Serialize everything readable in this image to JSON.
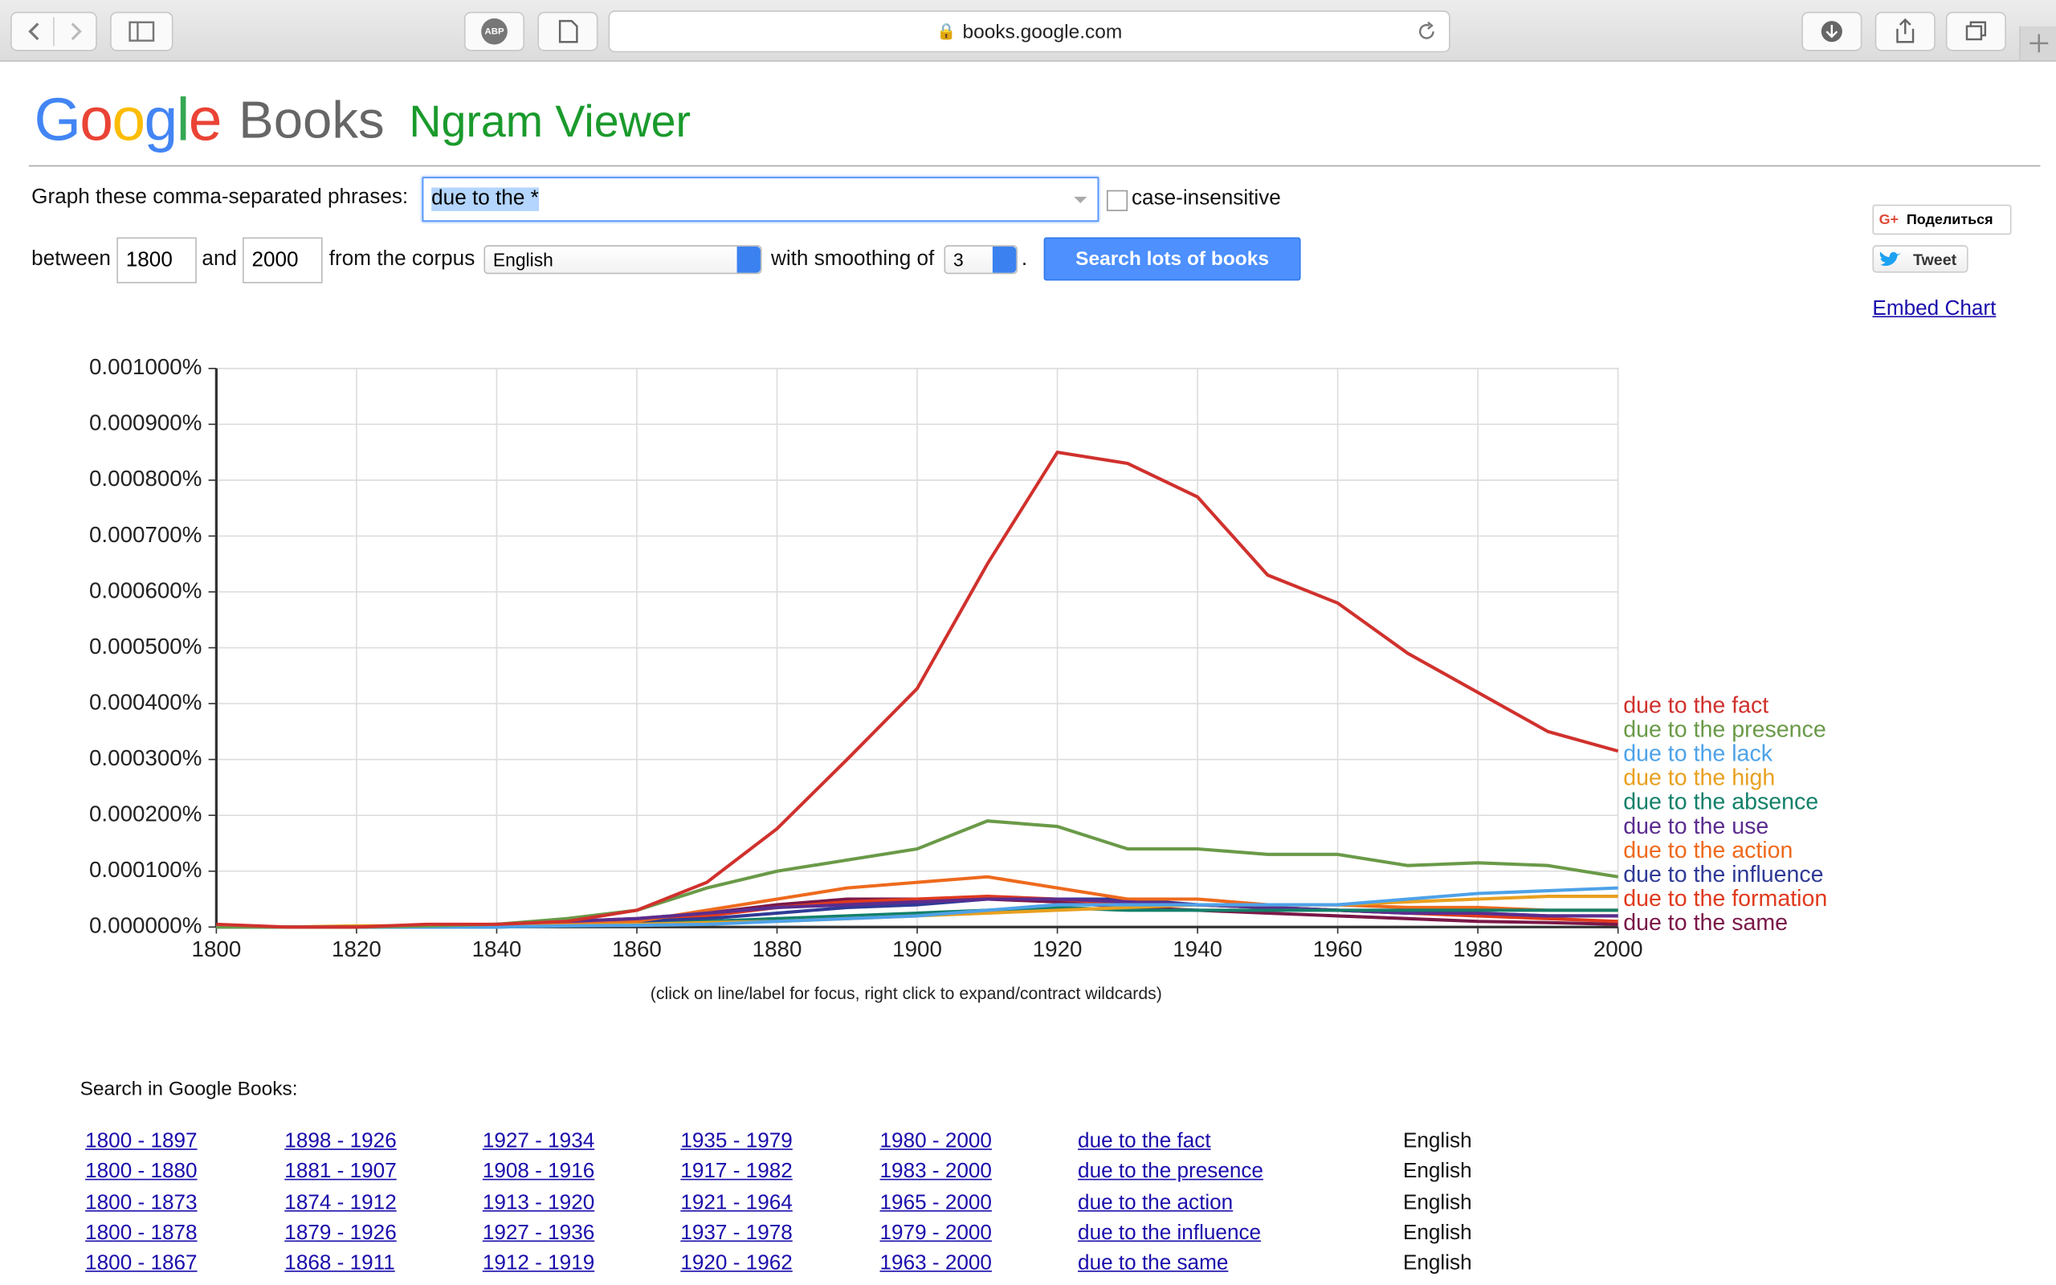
{
  "browser": {
    "url": "books.google.com",
    "adblock": "ABP"
  },
  "header": {
    "logo": "Google",
    "logo_books": "Books",
    "title": "Ngram Viewer"
  },
  "form": {
    "phrases_label": "Graph these comma-separated phrases:",
    "phrases": "due to the *",
    "case_insensitive": "case-insensitive",
    "between": "between",
    "year_start": "1800",
    "and": "and",
    "year_end": "2000",
    "corpus_label": "from the corpus",
    "corpus": "English",
    "smoothing_label": "with smoothing of",
    "smoothing": "3",
    "period": ".",
    "search_button": "Search lots of books"
  },
  "share": {
    "google_plus_icon": "G+",
    "google_plus": "Поделиться",
    "tweet": "Tweet",
    "embed": "Embed Chart"
  },
  "chart_data": {
    "type": "line",
    "caption": "(click on line/label for focus, right click to expand/contract wildcards)",
    "x": [
      1800,
      1810,
      1820,
      1830,
      1840,
      1850,
      1860,
      1870,
      1880,
      1890,
      1900,
      1910,
      1920,
      1930,
      1940,
      1950,
      1960,
      1970,
      1980,
      1990,
      2000
    ],
    "xlim": [
      1800,
      2000
    ],
    "xticks": [
      1800,
      1820,
      1840,
      1860,
      1880,
      1900,
      1920,
      1940,
      1960,
      1980,
      2000
    ],
    "ylim": [
      0,
      0.001
    ],
    "yticks": [
      {
        "value": 0,
        "label": "0.000000%"
      },
      {
        "value": 0.0001,
        "label": "0.000100%"
      },
      {
        "value": 0.0002,
        "label": "0.000200%"
      },
      {
        "value": 0.0003,
        "label": "0.000300%"
      },
      {
        "value": 0.0004,
        "label": "0.000400%"
      },
      {
        "value": 0.0005,
        "label": "0.000500%"
      },
      {
        "value": 0.0006,
        "label": "0.000600%"
      },
      {
        "value": 0.0007,
        "label": "0.000700%"
      },
      {
        "value": 0.0008,
        "label": "0.000800%"
      },
      {
        "value": 0.0009,
        "label": "0.000900%"
      },
      {
        "value": 0.001,
        "label": "0.001000%"
      }
    ],
    "grid": true,
    "series": [
      {
        "name": "due to the fact",
        "color": "#d0312d",
        "values": [
          5e-06,
          0,
          0,
          5e-06,
          5e-06,
          1e-05,
          3e-05,
          8e-05,
          0.000176,
          0.0003,
          0.000427,
          0.00065,
          0.00085,
          0.00083,
          0.00077,
          0.00063,
          0.00058,
          0.00049,
          0.00042,
          0.00035,
          0.000315
        ]
      },
      {
        "name": "due to the presence",
        "color": "#6a9a48",
        "values": [
          0,
          0,
          0,
          2e-06,
          5e-06,
          1.5e-05,
          3e-05,
          7e-05,
          0.0001,
          0.00012,
          0.00014,
          0.00019,
          0.00018,
          0.00014,
          0.00014,
          0.00013,
          0.00013,
          0.00011,
          0.000115,
          0.00011,
          9e-05
        ]
      },
      {
        "name": "due to the lack",
        "color": "#4ea2e8",
        "values": [
          0,
          0,
          0,
          0,
          0,
          2e-06,
          3e-06,
          5e-06,
          1e-05,
          1.5e-05,
          2e-05,
          3e-05,
          4e-05,
          4e-05,
          4e-05,
          4e-05,
          4e-05,
          5e-05,
          6e-05,
          6.5e-05,
          7e-05
        ]
      },
      {
        "name": "due to the high",
        "color": "#e8a020",
        "values": [
          2e-06,
          0,
          2e-06,
          2e-06,
          2e-06,
          3e-06,
          5e-06,
          8e-06,
          1e-05,
          1.5e-05,
          2e-05,
          2.5e-05,
          3e-05,
          3.5e-05,
          4e-05,
          4e-05,
          4e-05,
          4.5e-05,
          5e-05,
          5.5e-05,
          5.5e-05
        ]
      },
      {
        "name": "due to the absence",
        "color": "#13806a",
        "values": [
          0,
          0,
          0,
          0,
          0,
          2e-06,
          5e-06,
          1e-05,
          1.5e-05,
          2e-05,
          2.5e-05,
          3e-05,
          3.5e-05,
          3e-05,
          3e-05,
          3e-05,
          3e-05,
          3e-05,
          3e-05,
          3e-05,
          3e-05
        ]
      },
      {
        "name": "due to the use",
        "color": "#5b2d8f",
        "values": [
          0,
          0,
          0,
          2e-06,
          5e-06,
          1e-05,
          1.5e-05,
          2.5e-05,
          3.5e-05,
          4e-05,
          4.5e-05,
          5e-05,
          5e-05,
          4.5e-05,
          4e-05,
          3.5e-05,
          3e-05,
          2.5e-05,
          2.5e-05,
          2e-05,
          2e-05
        ]
      },
      {
        "name": "due to the action",
        "color": "#ee6a1d",
        "values": [
          0,
          0,
          0,
          0,
          2e-06,
          5e-06,
          1e-05,
          3e-05,
          5e-05,
          7e-05,
          8e-05,
          9e-05,
          7e-05,
          5e-05,
          5e-05,
          4e-05,
          4e-05,
          3.5e-05,
          3.5e-05,
          3e-05,
          3e-05
        ]
      },
      {
        "name": "due to the influence",
        "color": "#2f3b96",
        "values": [
          0,
          0,
          0,
          0,
          2e-06,
          5e-06,
          1e-05,
          1.5e-05,
          2.5e-05,
          3.5e-05,
          4e-05,
          5e-05,
          5e-05,
          5e-05,
          4e-05,
          3.5e-05,
          3e-05,
          2.5e-05,
          2.5e-05,
          2e-05,
          2e-05
        ]
      },
      {
        "name": "due to the formation",
        "color": "#e03a1e",
        "values": [
          0,
          0,
          0,
          0,
          2e-06,
          5e-06,
          1e-05,
          2e-05,
          3.5e-05,
          4.5e-05,
          5e-05,
          5.5e-05,
          5e-05,
          4e-05,
          4e-05,
          3.5e-05,
          3e-05,
          2.5e-05,
          2e-05,
          1.5e-05,
          1e-05
        ]
      },
      {
        "name": "due to the same",
        "color": "#7a1848",
        "values": [
          2e-06,
          0,
          0,
          2e-06,
          5e-06,
          1e-05,
          1.5e-05,
          2.5e-05,
          4e-05,
          5e-05,
          5e-05,
          5e-05,
          4.5e-05,
          3.5e-05,
          3e-05,
          2.5e-05,
          2e-05,
          1.5e-05,
          1e-05,
          8e-06,
          5e-06
        ]
      }
    ]
  },
  "search": {
    "heading": "Search in Google Books:",
    "rows": [
      [
        "1800 - 1897",
        "1898 - 1926",
        "1927 - 1934",
        "1935 - 1979",
        "1980 - 2000",
        "due to the fact",
        "English"
      ],
      [
        "1800 - 1880",
        "1881 - 1907",
        "1908 - 1916",
        "1917 - 1982",
        "1983 - 2000",
        "due to the presence",
        "English"
      ],
      [
        "1800 - 1873",
        "1874 - 1912",
        "1913 - 1920",
        "1921 - 1964",
        "1965 - 2000",
        "due to the action",
        "English"
      ],
      [
        "1800 - 1878",
        "1879 - 1926",
        "1927 - 1936",
        "1937 - 1978",
        "1979 - 2000",
        "due to the influence",
        "English"
      ],
      [
        "1800 - 1867",
        "1868 - 1911",
        "1912 - 1919",
        "1920 - 1962",
        "1963 - 2000",
        "due to the same",
        "English"
      ]
    ]
  }
}
